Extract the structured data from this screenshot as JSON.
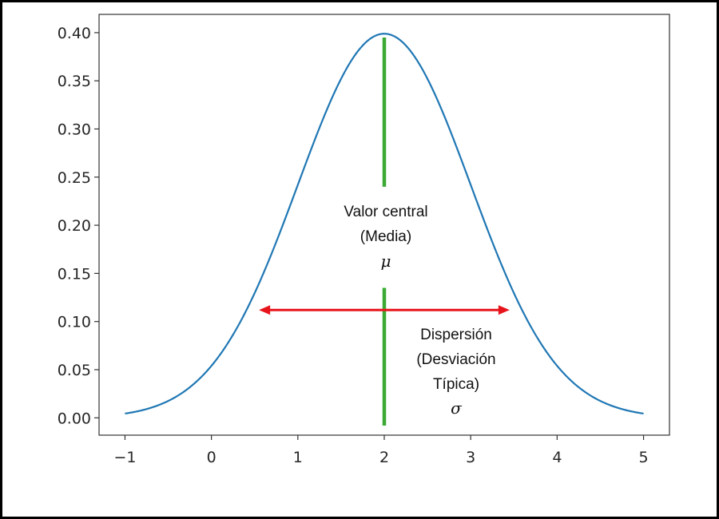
{
  "chart_data": {
    "type": "line",
    "title": "",
    "xlabel": "",
    "ylabel": "",
    "xlim": [
      -1.3,
      5.3
    ],
    "ylim": [
      -0.018,
      0.419
    ],
    "x_ticks": [
      -1,
      0,
      1,
      2,
      3,
      4,
      5
    ],
    "x_tick_labels": [
      "−1",
      "0",
      "1",
      "2",
      "3",
      "4",
      "5"
    ],
    "y_ticks": [
      0.0,
      0.05,
      0.1,
      0.15,
      0.2,
      0.25,
      0.3,
      0.35,
      0.4
    ],
    "y_tick_labels": [
      "0.00",
      "0.05",
      "0.10",
      "0.15",
      "0.20",
      "0.25",
      "0.30",
      "0.35",
      "0.40"
    ],
    "grid": false,
    "series": [
      {
        "distribution": "normal",
        "mean": 2,
        "std": 1,
        "x_range": [
          -1,
          5
        ],
        "color": "#1f77b4"
      }
    ],
    "mean_line": {
      "x": 2,
      "upper_y": [
        0.24,
        0.395
      ],
      "lower_y": [
        -0.008,
        0.135
      ],
      "color": "#3aaa35"
    },
    "spread_arrow": {
      "x_from": 0.55,
      "x_to": 3.45,
      "y": 0.112,
      "color": "#e8141c"
    },
    "annotations": {
      "center": {
        "lines": [
          "Valor central",
          "(Media)"
        ],
        "symbol": "μ"
      },
      "spread": {
        "lines": [
          "Dispersión",
          "(Desviación",
          "Típica)"
        ],
        "symbol": "σ"
      }
    }
  }
}
